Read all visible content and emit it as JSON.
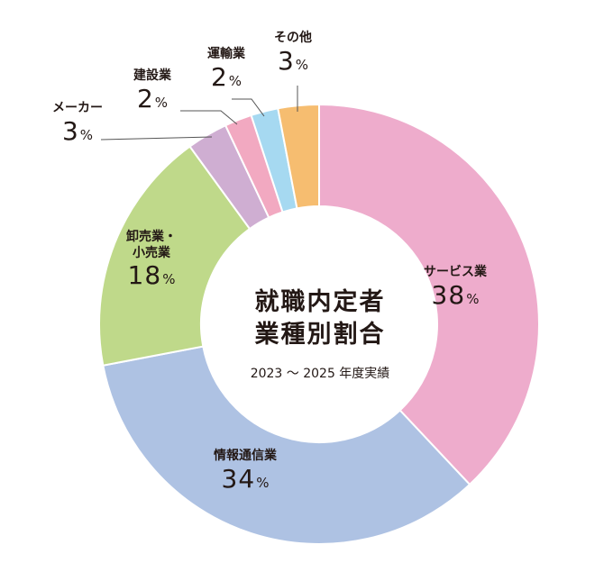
{
  "chart_data": {
    "type": "pie",
    "title": "就職内定者\n業種別割合",
    "subtitle": "2023 ～ 2025 年度実績",
    "unit": "%",
    "categories": [
      "サービス業",
      "情報通信業",
      "卸売業・小売業",
      "メーカー",
      "建設業",
      "運輸業",
      "その他"
    ],
    "values": [
      38,
      34,
      18,
      3,
      2,
      2,
      3
    ],
    "colors": [
      "#eeaccc",
      "#aec2e3",
      "#bfd98a",
      "#cfaed2",
      "#f2a9c1",
      "#a6d9f1",
      "#f6bd70"
    ]
  },
  "labels": [
    {
      "name": "サービス業",
      "value": "38"
    },
    {
      "name": "情報通信業",
      "value": "34"
    },
    {
      "name_line1": "卸売業・",
      "name_line2": "小売業",
      "value": "18"
    },
    {
      "name": "メーカー",
      "value": "3"
    },
    {
      "name": "建設業",
      "value": "2"
    },
    {
      "name": "運輸業",
      "value": "2"
    },
    {
      "name": "その他",
      "value": "3"
    }
  ],
  "center": {
    "title_line1": "就職内定者",
    "title_line2": "業種別割合",
    "subtitle": "2023 ～ 2025 年度実績"
  }
}
